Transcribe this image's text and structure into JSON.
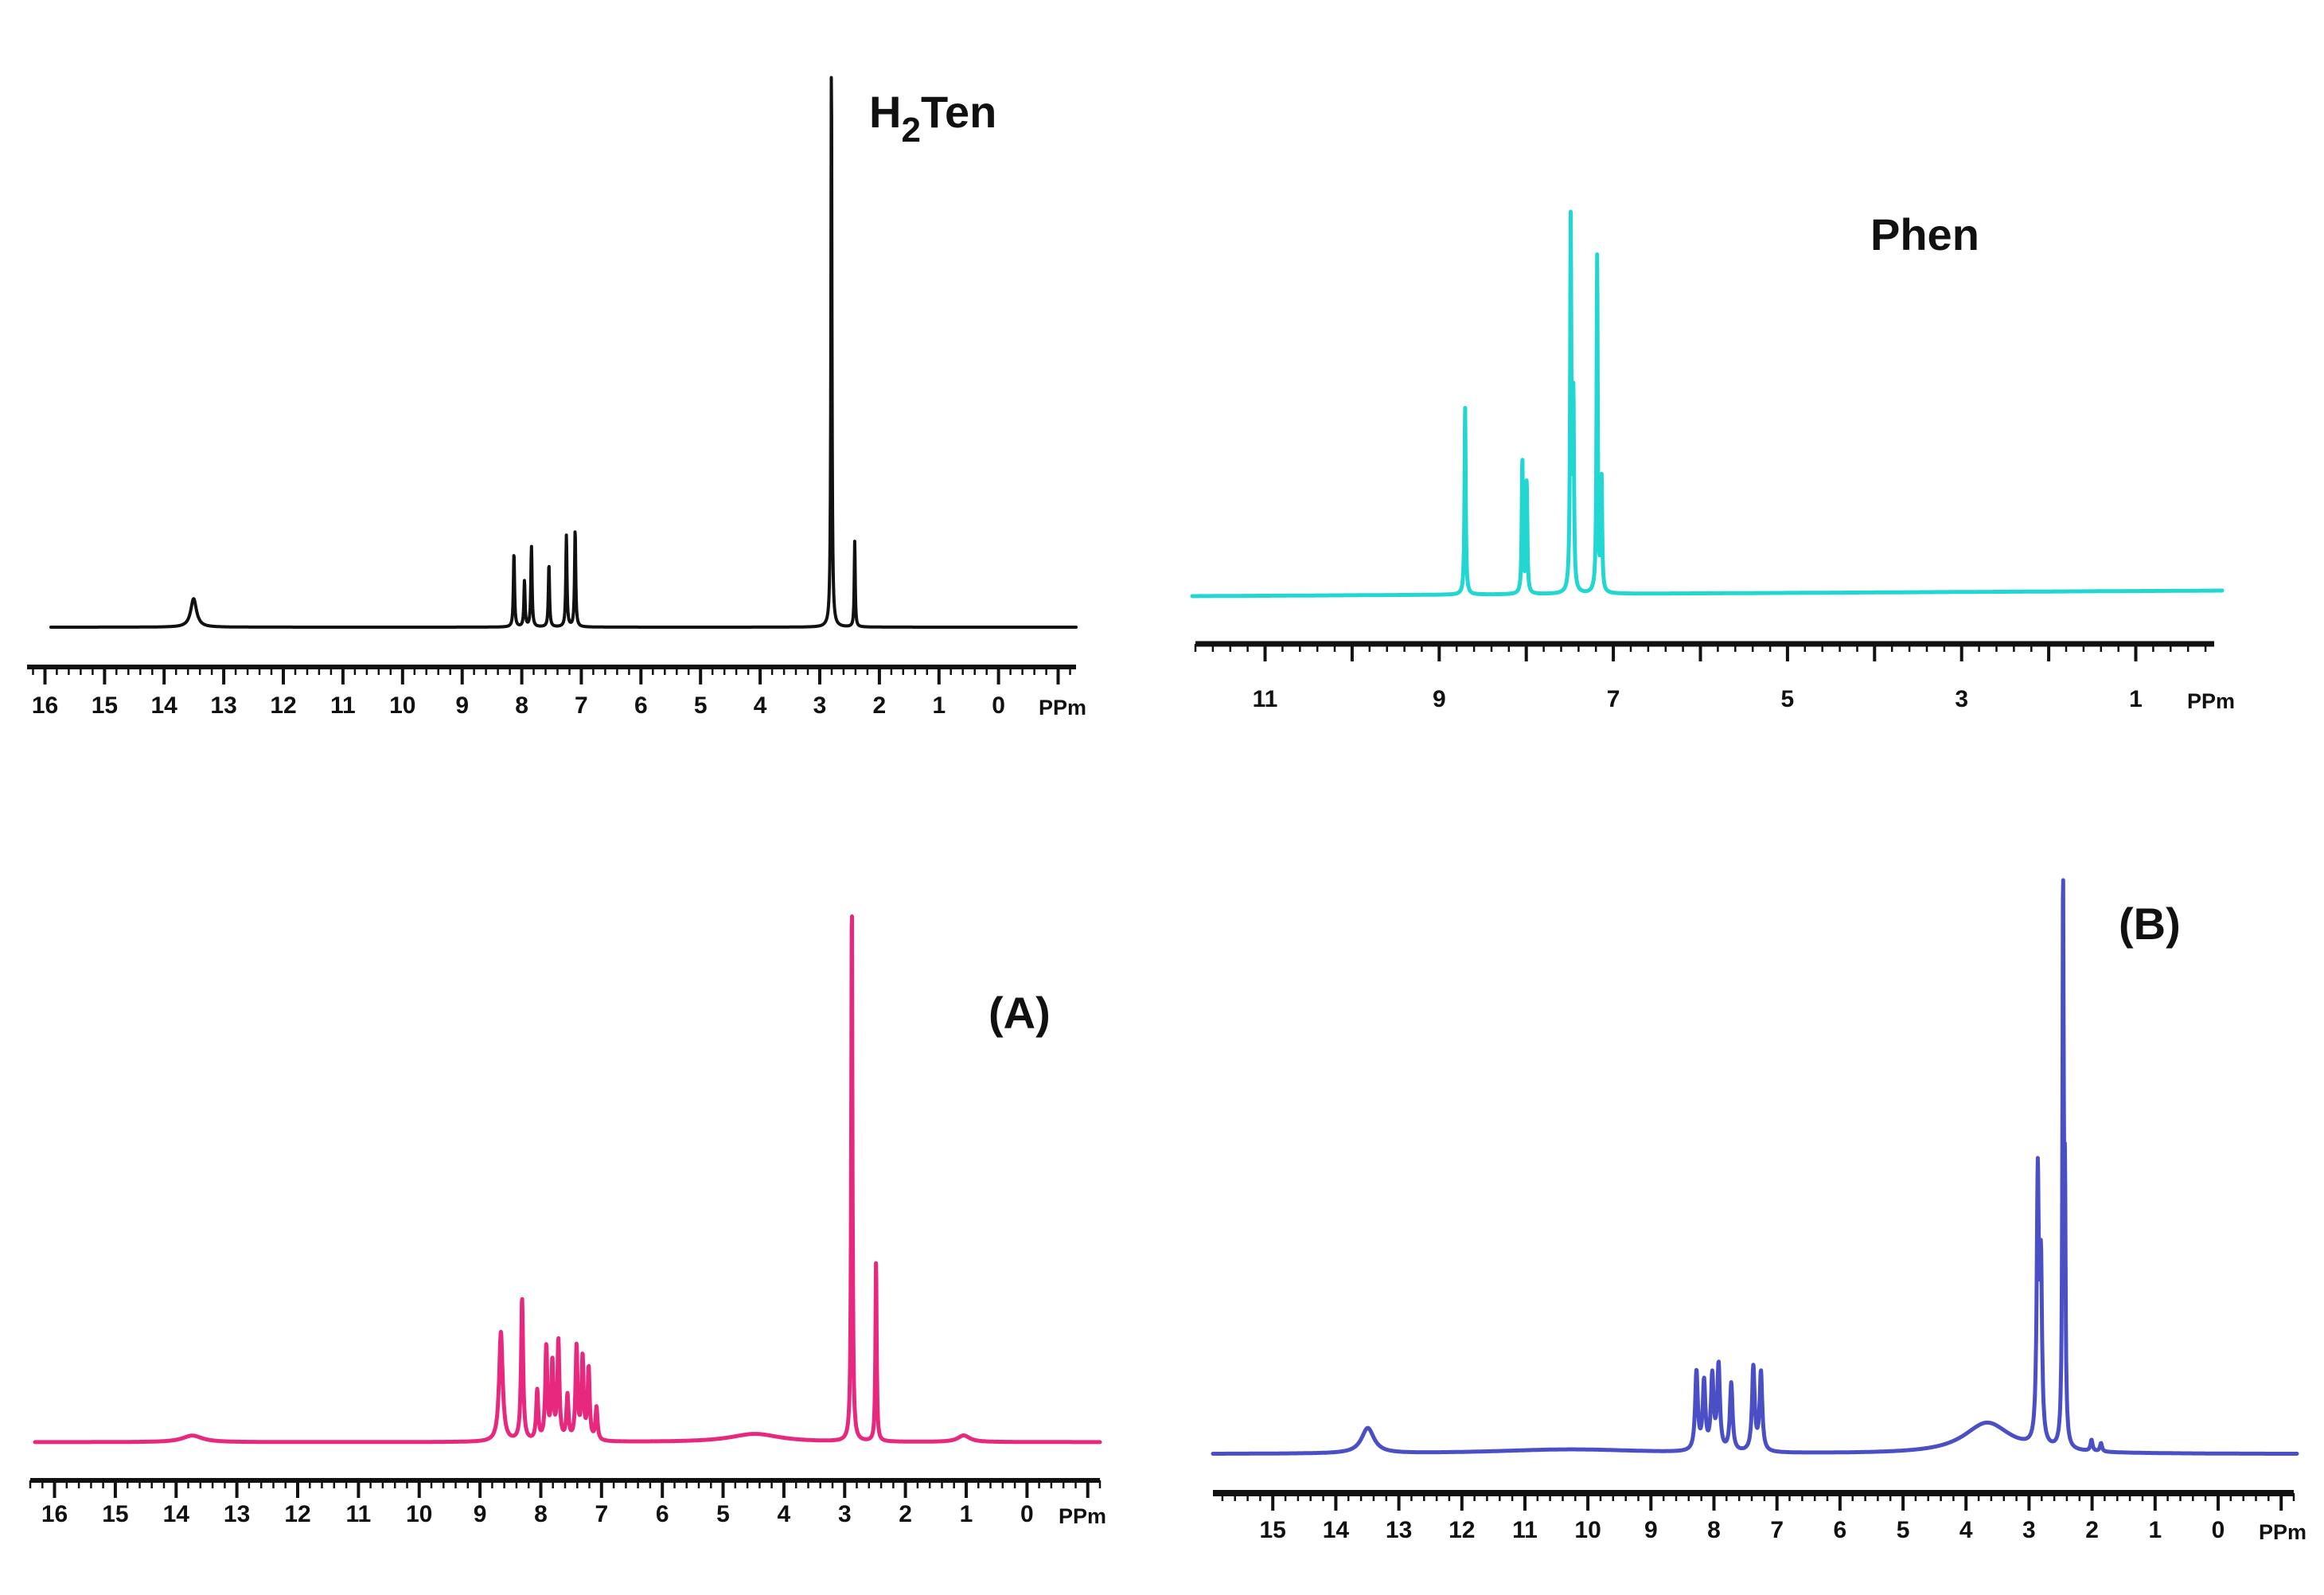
{
  "chart_data": [
    {
      "type": "line",
      "title": "H2Ten",
      "title_main": "H",
      "title_sub": "2",
      "title_rest": "Ten",
      "xlabel": "PPm",
      "ylabel": "",
      "xlim": [
        16.3,
        -1.3
      ],
      "x_reversed": true,
      "color": "#111111",
      "xticks": [
        "16",
        "15",
        "14",
        "13",
        "12",
        "11",
        "10",
        "9",
        "8",
        "7",
        "6",
        "5",
        "4",
        "3",
        "2",
        "1",
        "0"
      ],
      "baseline_drift": [
        0,
        0
      ],
      "peaks": [
        {
          "ppm": 13.85,
          "height": 0.05,
          "width": 0.06
        },
        {
          "ppm": 8.35,
          "height": 0.13,
          "width": 0.012
        },
        {
          "ppm": 8.17,
          "height": 0.08,
          "width": 0.012
        },
        {
          "ppm": 8.05,
          "height": 0.14,
          "width": 0.012
        },
        {
          "ppm": 7.75,
          "height": 0.11,
          "width": 0.012
        },
        {
          "ppm": 7.45,
          "height": 0.16,
          "width": 0.012
        },
        {
          "ppm": 7.3,
          "height": 0.17,
          "width": 0.012
        },
        {
          "ppm": 2.9,
          "height": 1.0,
          "width": 0.01
        },
        {
          "ppm": 2.5,
          "height": 0.15,
          "width": 0.01
        }
      ]
    },
    {
      "type": "line",
      "title": "Phen",
      "xlabel": "PPm",
      "ylabel": "",
      "xlim": [
        11.8,
        0.1
      ],
      "x_reversed": true,
      "color": "#22d7d2",
      "xticks": [
        "11",
        "9",
        "7",
        "5",
        "3",
        "1"
      ],
      "baseline_drift": [
        0,
        0.004
      ],
      "peaks": [
        {
          "ppm": 8.7,
          "height": 0.5,
          "width": 0.008
        },
        {
          "ppm": 8.05,
          "height": 0.36,
          "width": 0.008
        },
        {
          "ppm": 8.0,
          "height": 0.3,
          "width": 0.008
        },
        {
          "ppm": 7.5,
          "height": 1.0,
          "width": 0.008
        },
        {
          "ppm": 7.47,
          "height": 0.5,
          "width": 0.008
        },
        {
          "ppm": 7.2,
          "height": 0.9,
          "width": 0.008
        },
        {
          "ppm": 7.15,
          "height": 0.3,
          "width": 0.008
        }
      ]
    },
    {
      "type": "line",
      "title": "(A)",
      "xlabel": "PPm",
      "ylabel": "",
      "xlim": [
        16.4,
        -1.2
      ],
      "x_reversed": true,
      "color": "#e8287e",
      "xticks": [
        "16",
        "15",
        "14",
        "13",
        "12",
        "11",
        "10",
        "9",
        "8",
        "7",
        "6",
        "5",
        "4",
        "3",
        "2",
        "1",
        "0"
      ],
      "baseline_drift": [
        0,
        0
      ],
      "peaks": [
        {
          "ppm": 13.8,
          "height": 0.012,
          "width": 0.2
        },
        {
          "ppm": 8.7,
          "height": 0.2,
          "width": 0.035
        },
        {
          "ppm": 8.35,
          "height": 0.26,
          "width": 0.02
        },
        {
          "ppm": 8.1,
          "height": 0.09,
          "width": 0.02
        },
        {
          "ppm": 7.95,
          "height": 0.17,
          "width": 0.02
        },
        {
          "ppm": 7.85,
          "height": 0.14,
          "width": 0.02
        },
        {
          "ppm": 7.75,
          "height": 0.18,
          "width": 0.02
        },
        {
          "ppm": 7.6,
          "height": 0.08,
          "width": 0.02
        },
        {
          "ppm": 7.45,
          "height": 0.17,
          "width": 0.02
        },
        {
          "ppm": 7.35,
          "height": 0.15,
          "width": 0.02
        },
        {
          "ppm": 7.25,
          "height": 0.13,
          "width": 0.02
        },
        {
          "ppm": 7.12,
          "height": 0.06,
          "width": 0.02
        },
        {
          "ppm": 4.5,
          "height": 0.015,
          "width": 0.5
        },
        {
          "ppm": 2.9,
          "height": 1.0,
          "width": 0.012
        },
        {
          "ppm": 2.5,
          "height": 0.33,
          "width": 0.012
        },
        {
          "ppm": 1.05,
          "height": 0.012,
          "width": 0.12
        }
      ]
    },
    {
      "type": "line",
      "title": "(B)",
      "xlabel": "PPm",
      "ylabel": "",
      "xlim": [
        15.95,
        -1.2
      ],
      "x_reversed": true,
      "color": "#4a4fc6",
      "xticks": [
        "15",
        "14",
        "13",
        "12",
        "11",
        "10",
        "9",
        "8",
        "7",
        "6",
        "5",
        "4",
        "3",
        "2",
        "1",
        "0"
      ],
      "baseline_drift": [
        0,
        0
      ],
      "peaks": [
        {
          "ppm": 13.5,
          "height": 0.045,
          "width": 0.12
        },
        {
          "ppm": 10.3,
          "height": 0.008,
          "width": 1.5
        },
        {
          "ppm": 8.3,
          "height": 0.14,
          "width": 0.025
        },
        {
          "ppm": 8.18,
          "height": 0.12,
          "width": 0.025
        },
        {
          "ppm": 8.05,
          "height": 0.13,
          "width": 0.025
        },
        {
          "ppm": 7.95,
          "height": 0.15,
          "width": 0.025
        },
        {
          "ppm": 7.75,
          "height": 0.12,
          "width": 0.025
        },
        {
          "ppm": 7.4,
          "height": 0.15,
          "width": 0.025
        },
        {
          "ppm": 7.28,
          "height": 0.14,
          "width": 0.025
        },
        {
          "ppm": 3.7,
          "height": 0.055,
          "width": 0.45
        },
        {
          "ppm": 2.9,
          "height": 0.47,
          "width": 0.02
        },
        {
          "ppm": 2.85,
          "height": 0.3,
          "width": 0.02
        },
        {
          "ppm": 2.5,
          "height": 1.0,
          "width": 0.012
        },
        {
          "ppm": 2.47,
          "height": 0.4,
          "width": 0.012
        },
        {
          "ppm": 2.05,
          "height": 0.02,
          "width": 0.02
        },
        {
          "ppm": 1.9,
          "height": 0.015,
          "width": 0.02
        }
      ]
    }
  ]
}
